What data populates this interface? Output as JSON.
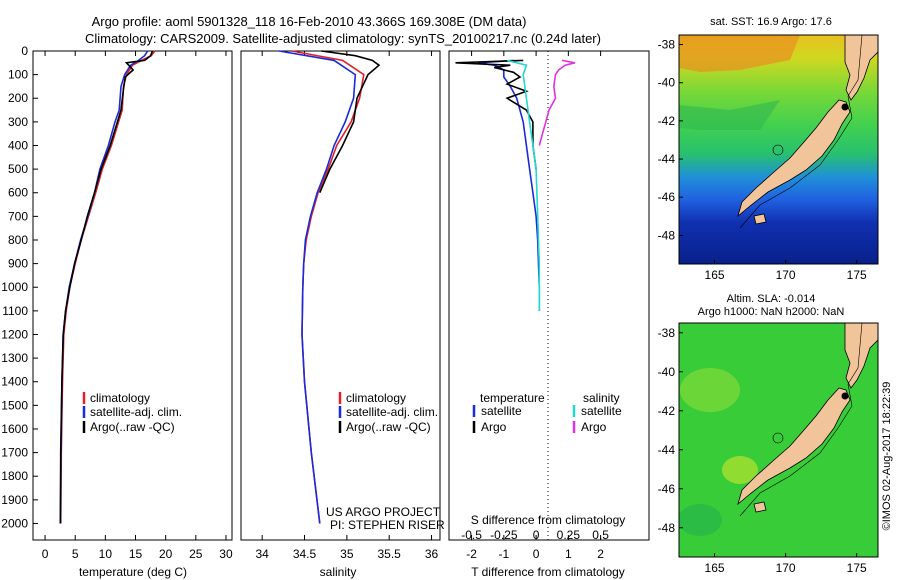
{
  "header": {
    "line1": "Argo profile: aoml 5901328_118 16-Feb-2010 43.366S 169.308E (DM data)",
    "line2": "Climatology: CARS2009. Satellite-adjusted climatology: synTS_20100217.nc (0.24d later)"
  },
  "footer": {
    "project": "US ARGO PROJECT",
    "pi": "PI: STEPHEN RISER",
    "stamp": "©IMOS 02-Aug-2017 18:22:39"
  },
  "legend_profile": [
    "climatology",
    "satellite-adj. clim.",
    "Argo(..raw -QC)"
  ],
  "legend_diff": {
    "temperature_header": "temperature",
    "salinity_header": "salinity",
    "t_satellite": "satellite",
    "t_argo": "Argo",
    "s_satellite": "satellite",
    "s_argo": "Argo"
  },
  "colors": {
    "climatology": "#e0202a",
    "satellite": "#1a2bd8",
    "argo": "#000000",
    "sal_satellite": "#22d8d0",
    "sal_argo": "#e030e0",
    "land": "#f2c49a",
    "map_green": "#33cc33"
  },
  "chart_data": [
    {
      "type": "line",
      "panel": "temperature",
      "xlabel": "temperature (deg C)",
      "xlim": [
        -2,
        31
      ],
      "xticks": [
        0,
        5,
        10,
        15,
        20,
        25,
        30
      ],
      "ylim": [
        0,
        2070
      ],
      "yticks": [
        0,
        100,
        200,
        300,
        400,
        500,
        600,
        700,
        800,
        900,
        1000,
        1100,
        1200,
        1300,
        1400,
        1500,
        1600,
        1700,
        1800,
        1900,
        2000
      ],
      "y_reversed": true,
      "series": [
        {
          "name": "climatology",
          "x": [
            18.2,
            17.6,
            16.0,
            14.5,
            13.5,
            13.0,
            12.8,
            12.2,
            11.0,
            9.5,
            8.4,
            7.2,
            6.0,
            5.0,
            4.1,
            3.5,
            3.1,
            2.9,
            2.7,
            2.6
          ],
          "y": [
            0,
            20,
            40,
            60,
            100,
            150,
            250,
            300,
            400,
            500,
            600,
            700,
            800,
            900,
            1000,
            1100,
            1200,
            1400,
            1700,
            2000
          ]
        },
        {
          "name": "satellite-adj. clim.",
          "x": [
            17.0,
            16.5,
            15.5,
            14.2,
            13.2,
            12.6,
            12.3,
            11.6,
            10.5,
            9.1,
            8.2,
            7.1,
            5.9,
            4.9,
            4.0,
            3.4,
            3.0,
            2.8,
            2.65,
            2.55
          ],
          "y": [
            0,
            20,
            40,
            60,
            100,
            150,
            250,
            300,
            400,
            500,
            600,
            700,
            800,
            900,
            1000,
            1100,
            1200,
            1400,
            1700,
            2000
          ]
        },
        {
          "name": "Argo(..raw -QC)",
          "x": [
            17.8,
            17.5,
            16.5,
            13.5,
            14.6,
            13.3,
            13.0,
            12.6,
            12.0,
            10.8,
            9.3,
            8.2,
            7.0,
            6.0,
            4.9,
            4.1,
            3.4,
            3.0,
            2.8,
            2.6,
            2.55
          ],
          "y": [
            0,
            20,
            40,
            50,
            80,
            110,
            160,
            250,
            300,
            400,
            500,
            600,
            700,
            800,
            900,
            1000,
            1100,
            1200,
            1400,
            1700,
            2000
          ]
        }
      ]
    },
    {
      "type": "line",
      "panel": "salinity",
      "xlabel": "salinity",
      "xlim": [
        33.75,
        36.1
      ],
      "xticks": [
        34,
        34.5,
        35,
        35.5,
        36
      ],
      "ylim": [
        0,
        2070
      ],
      "y_reversed": true,
      "series": [
        {
          "name": "climatology",
          "x": [
            34.35,
            34.95,
            35.2,
            35.15,
            35.05,
            34.88,
            34.78,
            34.66,
            34.58,
            34.52,
            34.49,
            34.48,
            34.47,
            34.5,
            34.58,
            34.68
          ],
          "y": [
            0,
            40,
            100,
            200,
            300,
            400,
            500,
            600,
            700,
            800,
            900,
            1000,
            1200,
            1400,
            1700,
            2000
          ]
        },
        {
          "name": "satellite-adj. clim.",
          "x": [
            34.2,
            34.85,
            35.1,
            35.08,
            34.98,
            34.85,
            34.76,
            34.65,
            34.57,
            34.51,
            34.49,
            34.48,
            34.47,
            34.5,
            34.58,
            34.68
          ],
          "y": [
            0,
            40,
            100,
            200,
            300,
            400,
            500,
            600,
            700,
            800,
            900,
            1000,
            1200,
            1400,
            1700,
            2000
          ]
        },
        {
          "name": "Argo(..raw -QC)",
          "x": [
            34.7,
            35.1,
            35.3,
            35.38,
            35.25,
            35.12,
            35.08,
            34.95,
            34.8,
            34.68
          ],
          "y": [
            0,
            20,
            40,
            60,
            100,
            200,
            300,
            400,
            500,
            600
          ]
        }
      ]
    },
    {
      "type": "line",
      "panel": "difference",
      "xlabel": "T difference from climatology",
      "xlabel_top": "S difference from climatology",
      "xlim": [
        -2.7,
        3.5
      ],
      "xticks": [
        -2,
        -1,
        0,
        1,
        2
      ],
      "sal_xticks": [
        "-0.5",
        "-0.25",
        "0",
        "0.25",
        "0.5"
      ],
      "ylim": [
        0,
        2070
      ],
      "y_reversed": true,
      "series": [
        {
          "name": "temperature satellite",
          "x": [
            -0.7,
            -1.8,
            -1.3,
            -1.0,
            -1.0,
            -0.8,
            -0.6,
            -0.4,
            -0.3,
            -0.2,
            -0.1,
            0.0,
            0.05,
            0.1,
            0.1
          ],
          "y": [
            40,
            50,
            60,
            80,
            110,
            150,
            200,
            300,
            400,
            500,
            600,
            700,
            800,
            1000,
            1100
          ]
        },
        {
          "name": "temperature Argo",
          "x": [
            -0.4,
            -2.5,
            -0.8,
            -1.3,
            -0.7,
            -0.5,
            -0.9,
            -0.3,
            -0.9,
            -0.3,
            -0.1,
            -0.1,
            0.0
          ],
          "y": [
            40,
            50,
            60,
            70,
            90,
            110,
            140,
            170,
            200,
            250,
            300,
            400,
            500
          ]
        },
        {
          "name": "salinity satellite",
          "x": [
            -0.9,
            -0.3,
            -0.4,
            -0.3,
            -0.2,
            -0.1,
            0.0,
            0.05,
            0.1,
            0.1
          ],
          "y": [
            40,
            60,
            100,
            200,
            300,
            400,
            500,
            700,
            900,
            1100
          ]
        },
        {
          "name": "salinity Argo",
          "x": [
            0.8,
            1.2,
            0.9,
            0.7,
            0.6,
            0.55,
            0.6,
            0.4,
            0.3,
            0.2,
            0.1
          ],
          "y": [
            40,
            50,
            60,
            80,
            100,
            150,
            200,
            250,
            300,
            350,
            400
          ]
        }
      ]
    },
    {
      "type": "heatmap",
      "panel": "sst_map",
      "title": "sat. SST: 16.9 Argo: 17.6",
      "xticks": [
        "165",
        "170",
        "175"
      ],
      "yticks": [
        "-38",
        "-40",
        "-42",
        "-44",
        "-46",
        "-48"
      ],
      "lon_range": [
        162.5,
        176.5
      ],
      "lat_range": [
        -49.5,
        -37.5
      ],
      "float_marker": [
        174,
        -41
      ]
    },
    {
      "type": "heatmap",
      "panel": "sla_map",
      "title": "Altim. SLA: -0.014",
      "subtitle": "Argo h1000: NaN h2000: NaN",
      "xticks": [
        "165",
        "170",
        "175"
      ],
      "yticks": [
        "-38",
        "-40",
        "-42",
        "-44",
        "-46",
        "-48"
      ],
      "lon_range": [
        162.5,
        176.5
      ],
      "lat_range": [
        -49.5,
        -37.5
      ],
      "float_marker": [
        174,
        -41
      ]
    }
  ]
}
